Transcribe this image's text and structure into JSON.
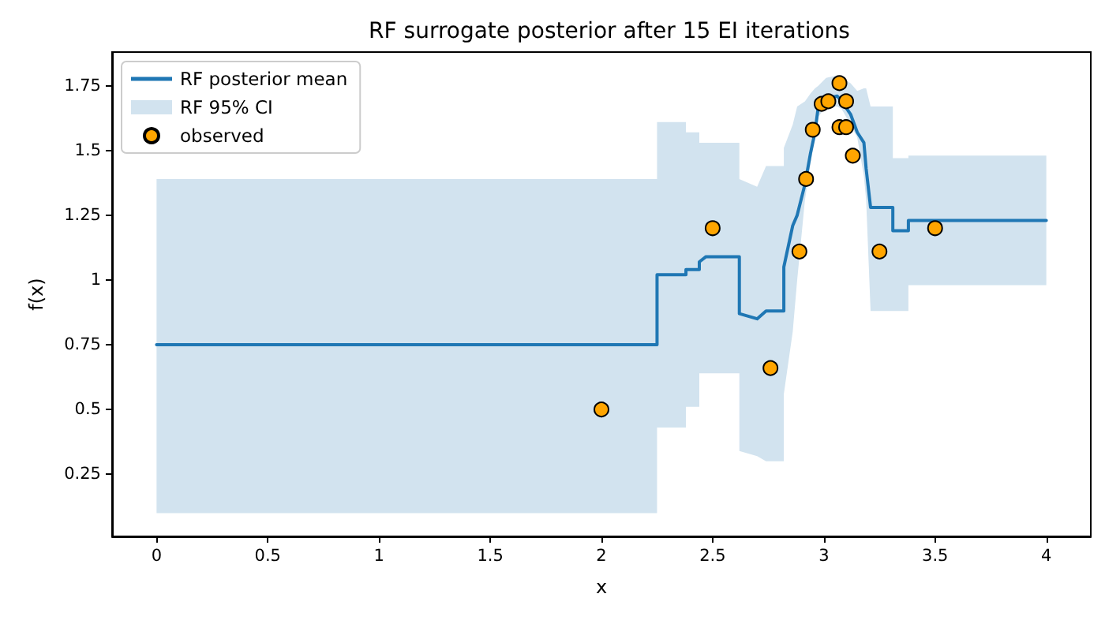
{
  "chart_data": {
    "type": "line",
    "title": "RF surrogate posterior after 15 EI iterations",
    "xlabel": "x",
    "ylabel": "f(x)",
    "xlim": [
      -0.2,
      4.2
    ],
    "ylim": [
      0.01,
      1.88
    ],
    "xticks": [
      0,
      0.5,
      1,
      1.5,
      2,
      2.5,
      3,
      3.5,
      4
    ],
    "yticks": [
      0.25,
      0.5,
      0.75,
      1,
      1.25,
      1.5,
      1.75
    ],
    "grid": false,
    "legend": "top left",
    "marker": "none",
    "line_style": "solid",
    "series": [
      {
        "name": "RF posterior mean",
        "color": "#1f77b4",
        "x": [
          0,
          2.25,
          2.25,
          2.38,
          2.38,
          2.44,
          2.44,
          2.47,
          2.62,
          2.62,
          2.7,
          2.74,
          2.82,
          2.82,
          2.86,
          2.88,
          2.915,
          2.94,
          2.96,
          2.975,
          3.01,
          3.06,
          3.08,
          3.12,
          3.15,
          3.18,
          3.19,
          3.21,
          3.31,
          3.31,
          3.38,
          3.38,
          4
        ],
        "values": [
          0.75,
          0.75,
          1.02,
          1.02,
          1.04,
          1.04,
          1.07,
          1.09,
          1.09,
          0.87,
          0.85,
          0.88,
          0.88,
          1.05,
          1.21,
          1.25,
          1.37,
          1.49,
          1.57,
          1.67,
          1.7,
          1.71,
          1.69,
          1.64,
          1.57,
          1.53,
          1.43,
          1.28,
          1.28,
          1.19,
          1.19,
          1.23,
          1.23
        ],
        "lower": [
          0.1,
          0.1,
          0.43,
          0.43,
          0.51,
          0.51,
          0.64,
          0.64,
          0.64,
          0.34,
          0.32,
          0.3,
          0.3,
          0.56,
          0.8,
          1.0,
          1.31,
          1.45,
          1.55,
          1.63,
          1.67,
          1.67,
          1.66,
          1.6,
          1.55,
          1.4,
          1.31,
          0.88,
          0.88,
          0.88,
          0.88,
          0.98,
          0.98
        ],
        "upper": [
          1.39,
          1.39,
          1.61,
          1.61,
          1.57,
          1.57,
          1.53,
          1.53,
          1.53,
          1.39,
          1.36,
          1.44,
          1.44,
          1.51,
          1.6,
          1.67,
          1.69,
          1.72,
          1.74,
          1.75,
          1.78,
          1.79,
          1.78,
          1.76,
          1.73,
          1.74,
          1.74,
          1.67,
          1.67,
          1.47,
          1.47,
          1.48,
          1.48
        ]
      },
      {
        "name": "RF 95% CI",
        "type": "area",
        "color": "#d2e3ef"
      },
      {
        "name": "observed",
        "type": "scatter",
        "marker": "circle",
        "color": "#ffa500",
        "x": [
          2,
          2.5,
          2.76,
          2.89,
          2.92,
          2.95,
          2.99,
          3.02,
          3.07,
          3.07,
          3.1,
          3.1,
          3.13,
          3.25,
          3.5
        ],
        "values": [
          0.5,
          1.2,
          0.66,
          1.11,
          1.39,
          1.58,
          1.68,
          1.69,
          1.76,
          1.59,
          1.69,
          1.59,
          1.48,
          1.11,
          1.2
        ]
      }
    ]
  }
}
